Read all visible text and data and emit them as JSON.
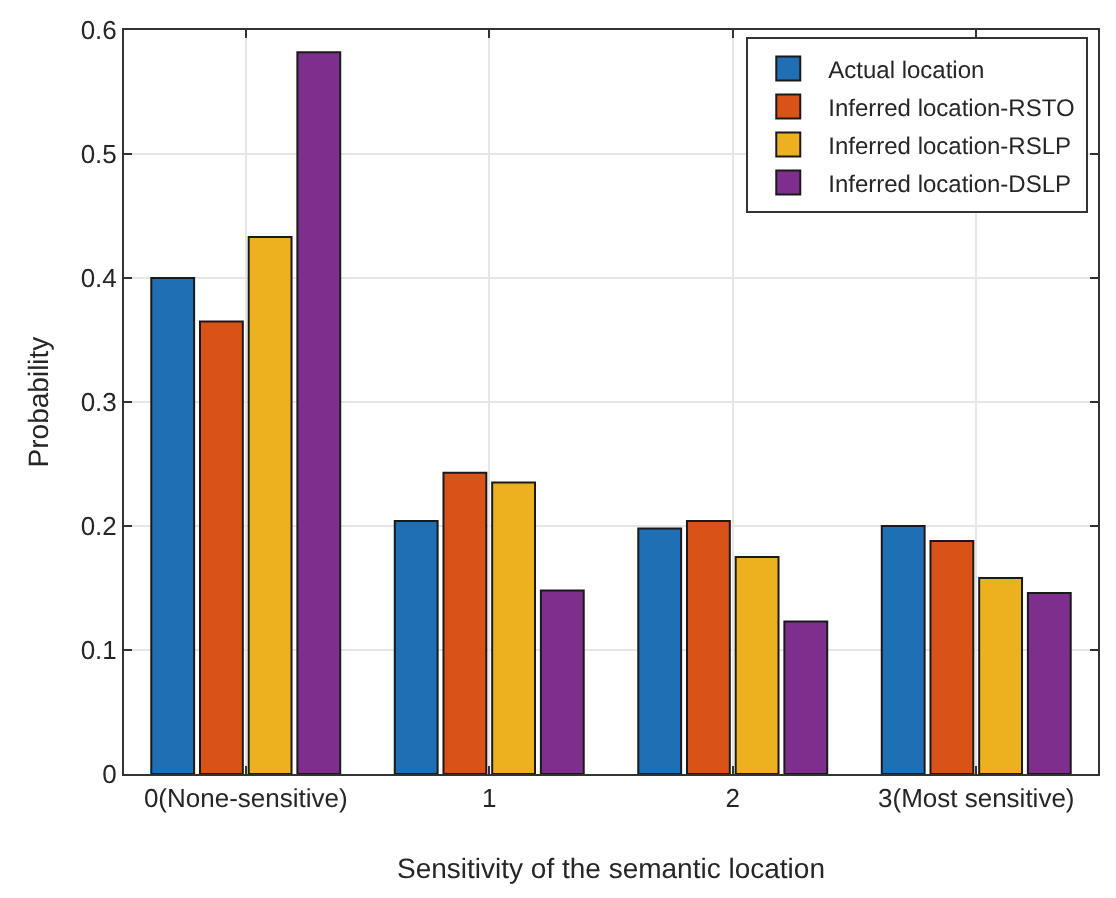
{
  "chart_data": {
    "type": "bar",
    "xlabel": "Sensitivity of the semantic location",
    "ylabel": "Probability",
    "categories": [
      "0(None-sensitive)",
      "1",
      "2",
      "3(Most sensitive)"
    ],
    "series": [
      {
        "name": "Actual location",
        "color": "#1f6fb4",
        "values": [
          0.4,
          0.204,
          0.198,
          0.2
        ]
      },
      {
        "name": "Inferred location-RSTO",
        "color": "#d95319",
        "values": [
          0.365,
          0.243,
          0.204,
          0.188
        ]
      },
      {
        "name": "Inferred location-RSLP",
        "color": "#edb120",
        "values": [
          0.433,
          0.235,
          0.175,
          0.158
        ]
      },
      {
        "name": "Inferred location-DSLP",
        "color": "#7e2f8e",
        "values": [
          0.582,
          0.148,
          0.123,
          0.146
        ]
      }
    ],
    "ylim": [
      0,
      0.6
    ],
    "yticks": [
      0,
      0.1,
      0.2,
      0.3,
      0.4,
      0.5,
      0.6
    ],
    "grid": true,
    "legend": "top right"
  }
}
